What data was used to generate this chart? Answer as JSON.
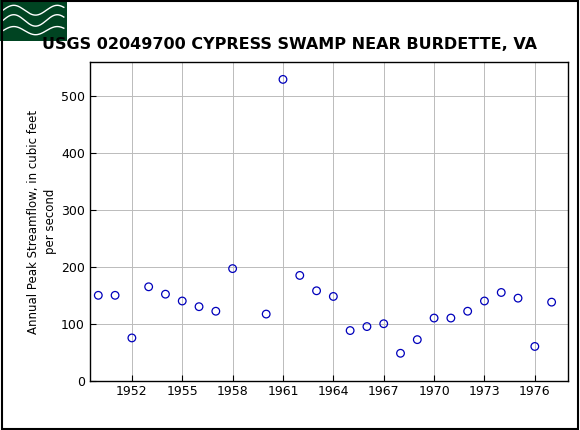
{
  "title": "USGS 02049700 CYPRESS SWAMP NEAR BURDETTE, VA",
  "ylabel_line1": "Annual Peak Streamflow, in cubic feet",
  "ylabel_line2": "per second",
  "years": [
    1950,
    1951,
    1952,
    1953,
    1954,
    1955,
    1956,
    1957,
    1958,
    1960,
    1961,
    1962,
    1963,
    1964,
    1965,
    1966,
    1967,
    1968,
    1969,
    1970,
    1971,
    1972,
    1973,
    1974,
    1975,
    1976,
    1977
  ],
  "flows": [
    150,
    150,
    75,
    165,
    152,
    140,
    130,
    122,
    197,
    117,
    530,
    185,
    158,
    148,
    88,
    95,
    100,
    48,
    72,
    110,
    110,
    122,
    140,
    155,
    145,
    60,
    138
  ],
  "marker_color": "#0000bb",
  "marker_size": 5.5,
  "ylim": [
    0,
    560
  ],
  "yticks": [
    0,
    100,
    200,
    300,
    400,
    500
  ],
  "xlim": [
    1949.5,
    1978
  ],
  "xticks": [
    1952,
    1955,
    1958,
    1961,
    1964,
    1967,
    1970,
    1973,
    1976
  ],
  "grid_color": "#bbbbbb",
  "bg_color": "#ffffff",
  "header_bg": "#006633",
  "header_dark": "#004422",
  "title_fontsize": 11.5,
  "ylabel_fontsize": 8.5,
  "tick_fontsize": 9,
  "border_color": "#000000"
}
